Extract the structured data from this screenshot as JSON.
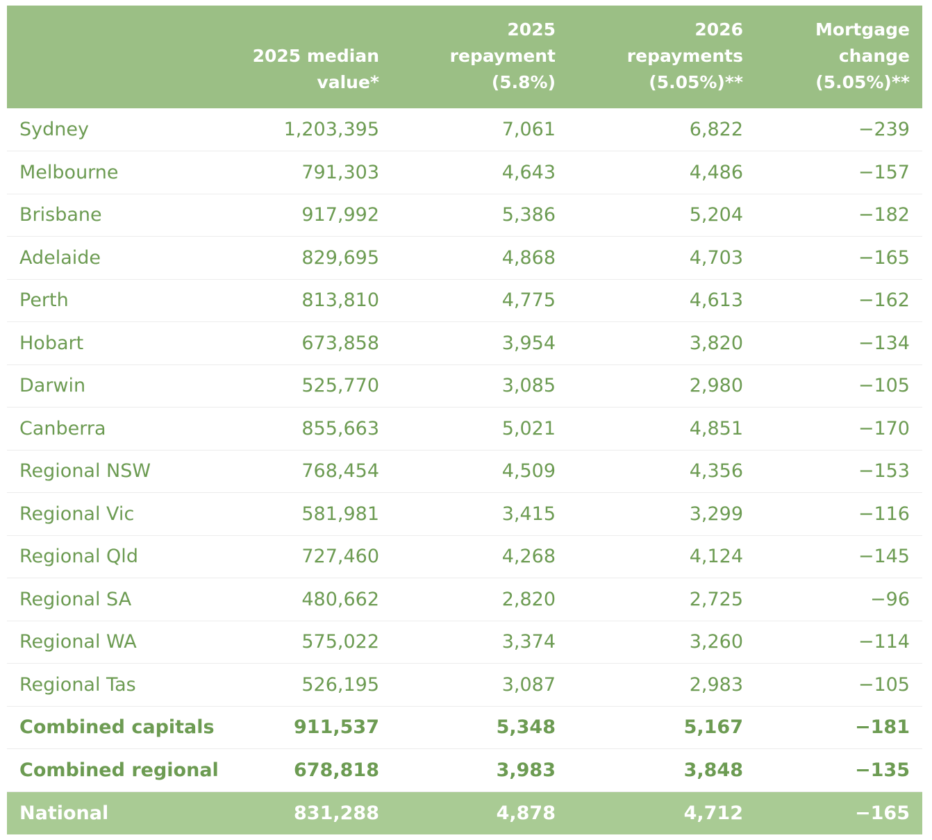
{
  "colors": {
    "header_bg": "#9bbf85",
    "total_bg": "#a9cb94",
    "text_green": "#6c9b52",
    "header_text": "#ffffff"
  },
  "chart_data": {
    "type": "table",
    "columns": [
      "",
      "2025 median\nvalue*",
      "2025\nrepayment\n(5.8%)",
      "2026\nrepayments\n(5.05%)**",
      "Mortgage\nchange\n(5.05%)**"
    ],
    "rows": [
      {
        "label": "Sydney",
        "values": [
          "1,203,395",
          "7,061",
          "6,822",
          "−239"
        ],
        "style": "normal"
      },
      {
        "label": "Melbourne",
        "values": [
          "791,303",
          "4,643",
          "4,486",
          "−157"
        ],
        "style": "normal"
      },
      {
        "label": "Brisbane",
        "values": [
          "917,992",
          "5,386",
          "5,204",
          "−182"
        ],
        "style": "normal"
      },
      {
        "label": "Adelaide",
        "values": [
          "829,695",
          "4,868",
          "4,703",
          "−165"
        ],
        "style": "normal"
      },
      {
        "label": "Perth",
        "values": [
          "813,810",
          "4,775",
          "4,613",
          "−162"
        ],
        "style": "normal"
      },
      {
        "label": "Hobart",
        "values": [
          "673,858",
          "3,954",
          "3,820",
          "−134"
        ],
        "style": "normal"
      },
      {
        "label": "Darwin",
        "values": [
          "525,770",
          "3,085",
          "2,980",
          "−105"
        ],
        "style": "normal"
      },
      {
        "label": "Canberra",
        "values": [
          "855,663",
          "5,021",
          "4,851",
          "−170"
        ],
        "style": "normal"
      },
      {
        "label": "Regional NSW",
        "values": [
          "768,454",
          "4,509",
          "4,356",
          "−153"
        ],
        "style": "normal"
      },
      {
        "label": "Regional Vic",
        "values": [
          "581,981",
          "3,415",
          "3,299",
          "−116"
        ],
        "style": "normal"
      },
      {
        "label": "Regional Qld",
        "values": [
          "727,460",
          "4,268",
          "4,124",
          "−145"
        ],
        "style": "normal"
      },
      {
        "label": "Regional SA",
        "values": [
          "480,662",
          "2,820",
          "2,725",
          "−96"
        ],
        "style": "normal"
      },
      {
        "label": "Regional WA",
        "values": [
          "575,022",
          "3,374",
          "3,260",
          "−114"
        ],
        "style": "normal"
      },
      {
        "label": "Regional Tas",
        "values": [
          "526,195",
          "3,087",
          "2,983",
          "−105"
        ],
        "style": "normal"
      },
      {
        "label": "Combined capitals",
        "values": [
          "911,537",
          "5,348",
          "5,167",
          "−181"
        ],
        "style": "bold"
      },
      {
        "label": "Combined regional",
        "values": [
          "678,818",
          "3,983",
          "3,848",
          "−135"
        ],
        "style": "bold"
      },
      {
        "label": "National",
        "values": [
          "831,288",
          "4,878",
          "4,712",
          "−165"
        ],
        "style": "total"
      }
    ]
  }
}
